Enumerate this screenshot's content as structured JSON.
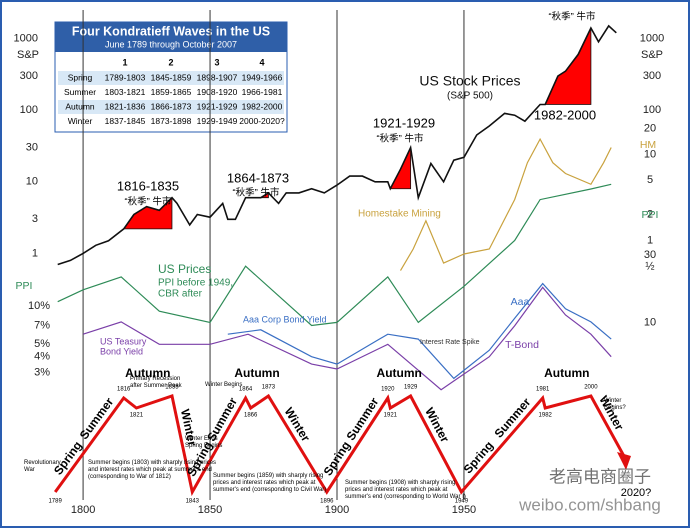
{
  "table": {
    "title": "Four Kondratieff Waves in the US",
    "subtitle": "June 1789 through October 2007",
    "columns": [
      "1",
      "2",
      "3",
      "4"
    ],
    "rows": [
      [
        "Spring",
        "1789-1803",
        "1845-1859",
        "1898-1907",
        "1949-1966"
      ],
      [
        "Summer",
        "1803-1821",
        "1859-1865",
        "1908-1920",
        "1966-1981"
      ],
      [
        "Autumn",
        "1821-1836",
        "1866-1873",
        "1921-1929",
        "1982-2000"
      ],
      [
        "Winter",
        "1837-1845",
        "1873-1898",
        "1929-1949",
        "2000-2020?"
      ]
    ]
  },
  "chart_data": {
    "type": "line",
    "xlim": [
      1785,
      2015
    ],
    "xticks": [
      1800,
      1850,
      1900,
      1950
    ],
    "grid": true,
    "log_scale": true,
    "ylim": [
      0.5,
      2500
    ],
    "yticks": [
      1,
      3,
      10,
      30,
      100,
      300,
      1000
    ],
    "y2lim": [
      0.4,
      25
    ],
    "y2ticks": [
      {
        "value": 0.5,
        "label": "½"
      },
      1,
      2,
      5,
      10,
      20
    ],
    "y3lim": [
      7.5,
      120
    ],
    "y3ticks": [
      10,
      30
    ],
    "y4lim": [
      2,
      16
    ],
    "y4ticks": [
      {
        "value": 3,
        "label": "3%"
      },
      {
        "value": 4,
        "label": "4%"
      },
      {
        "value": 5,
        "label": "5%"
      },
      {
        "value": 7,
        "label": "7%"
      },
      {
        "value": 10,
        "label": "10%"
      }
    ],
    "series": [
      {
        "name": "S&P",
        "color": "#111111",
        "axis": "y",
        "x": [
          1790,
          1795,
          1800,
          1805,
          1810,
          1816,
          1820,
          1825,
          1830,
          1835,
          1837,
          1842,
          1845,
          1850,
          1855,
          1857,
          1860,
          1864,
          1870,
          1873,
          1877,
          1880,
          1885,
          1890,
          1895,
          1900,
          1905,
          1910,
          1915,
          1920,
          1921,
          1925,
          1929,
          1932,
          1937,
          1942,
          1946,
          1950,
          1955,
          1960,
          1966,
          1970,
          1974,
          1980,
          1982,
          1987,
          1990,
          1995,
          2000,
          2003,
          2007,
          2010
        ],
        "values": [
          0.7,
          0.8,
          1.0,
          1.3,
          1.5,
          2.2,
          3.5,
          4.5,
          4,
          6,
          5,
          2.5,
          3.5,
          3.2,
          5,
          3,
          3,
          6,
          6,
          7,
          5,
          7,
          7,
          8,
          7,
          9,
          12,
          12,
          10,
          10,
          8,
          15,
          30,
          6,
          18,
          10,
          20,
          22,
          45,
          60,
          90,
          85,
          70,
          120,
          120,
          300,
          350,
          600,
          1400,
          900,
          1500,
          1200
        ]
      },
      {
        "name": "HM",
        "color": "#c9a23e",
        "axis": "y2",
        "x": [
          1925,
          1930,
          1935,
          1942,
          1950,
          1960,
          1970,
          1975,
          1980,
          1985,
          1990,
          2000,
          2005,
          2008
        ],
        "values": [
          0.45,
          0.8,
          1.7,
          0.55,
          0.7,
          0.8,
          3,
          8,
          15,
          8,
          6,
          4.5,
          8,
          12
        ]
      },
      {
        "name": "PPI",
        "color": "#2e8b57",
        "axis": "y3",
        "x": [
          1790,
          1800,
          1815,
          1830,
          1850,
          1864,
          1890,
          1900,
          1920,
          1932,
          1950,
          1970,
          1980,
          2000,
          2008
        ],
        "values": [
          14,
          17,
          21,
          12,
          10,
          25,
          9.5,
          10,
          21,
          10,
          18,
          38,
          74,
          88,
          95
        ]
      },
      {
        "name": "Aaa",
        "color": "#3a6fc4",
        "axis": "y4",
        "x": [
          1857,
          1870,
          1890,
          1900,
          1920,
          1932,
          1946,
          1960,
          1970,
          1981,
          1990,
          2000,
          2008
        ],
        "values": [
          6,
          6.5,
          4,
          3.5,
          6,
          5.5,
          2.7,
          4.5,
          8,
          15,
          9.5,
          7.5,
          5.5
        ]
      },
      {
        "name": "T-Bond",
        "color": "#7a3fa8",
        "axis": "y4",
        "x": [
          1800,
          1815,
          1830,
          1850,
          1865,
          1890,
          1900,
          1920,
          1941,
          1960,
          1970,
          1981,
          1990,
          2000,
          2008
        ],
        "values": [
          6,
          7.5,
          5,
          5,
          6,
          3.5,
          3.2,
          5,
          2.2,
          4,
          7,
          14,
          8.5,
          6,
          4
        ]
      }
    ],
    "autumn_bulls": [
      {
        "label": "1816-1835",
        "sub": "“秋季” 牛市",
        "start": 1816,
        "end": 1835
      },
      {
        "label": "1864-1873",
        "sub": "“秋季” 牛市",
        "start": 1864,
        "end": 1873
      },
      {
        "label": "1921-1929",
        "sub": "“秋季” 牛市",
        "start": 1921,
        "end": 1929
      },
      {
        "label": "1982-2000",
        "sub": "“秋季” 牛市",
        "start": 1982,
        "end": 2000
      }
    ],
    "labels": [
      "US Stock Prices",
      "(S&P 500)",
      "Homestake Mining",
      "US Prices",
      "PPI before 1949,",
      "CBR after",
      "Aaa Corp Bond Yield",
      "US Teasury",
      "Bond Yield",
      "Interest Rate Spike"
    ]
  },
  "waves": {
    "seasons": [
      "Spring",
      "Summer",
      "Autumn",
      "Winter"
    ],
    "turns": [
      1789,
      1816,
      1821,
      1835,
      1843,
      1864,
      1866,
      1873,
      1896,
      1920,
      1921,
      1929,
      1949,
      1981,
      1982,
      2000
    ],
    "end_label": "2020?",
    "notes": [
      "Revolutionary War",
      "Primary Recession after Summer Peak",
      "Winter Begins",
      "Winter Ends Spring Begins",
      "Summer begins (1803) with sharply rising prices and interest rates which peak at summer's end (corresponding to War of 1812)",
      "Summer begins (1859) with sharply rising prices and interest rates which peak at summer's end (corresponding to Civil War)",
      "Summer begins (1908) with sharply rising prices and interest rates which peak at summer's end (corresponding to World War I)",
      "Winter Begins?"
    ]
  },
  "watermark": {
    "name": "老高电商圈子",
    "url": "weibo.com/shbang"
  }
}
